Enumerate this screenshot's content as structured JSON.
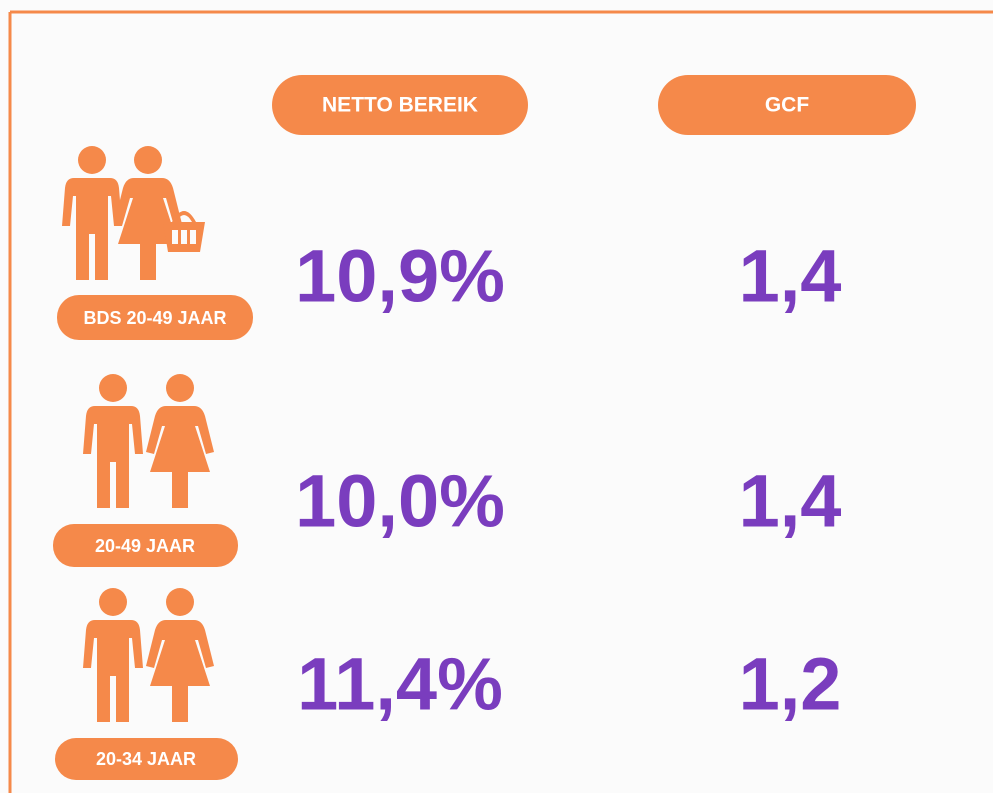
{
  "table": {
    "header": [
      "NETTO BEREIK",
      "GCF"
    ],
    "rows": [
      [
        "BDS 20-49 JAAR",
        "10,9%",
        "1,4"
      ],
      [
        "20-49 JAAR",
        "10,0%",
        "1,4"
      ],
      [
        "20-34 JAAR",
        "11,4%",
        "1,2"
      ]
    ]
  }
}
